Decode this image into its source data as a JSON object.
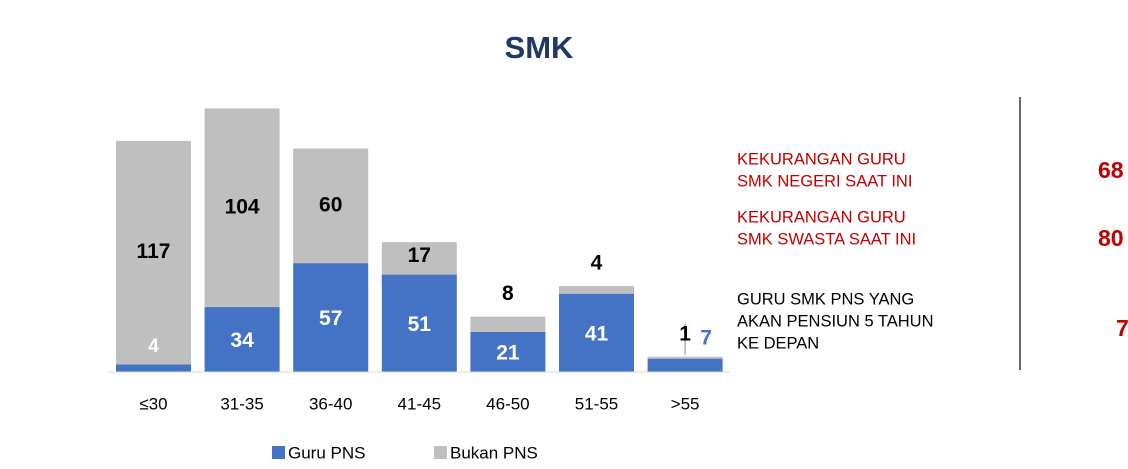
{
  "chart_data": {
    "type": "bar",
    "stacked": true,
    "title": "SMK",
    "categories": [
      "≤30",
      "31-35",
      "36-40",
      "41-45",
      "46-50",
      "51-55",
      ">55"
    ],
    "series": [
      {
        "name": "Guru PNS",
        "color": "#4472c4",
        "values": [
          4,
          34,
          57,
          51,
          21,
          41,
          7
        ]
      },
      {
        "name": "Bukan PNS",
        "color": "#bfbfbf",
        "values": [
          117,
          104,
          60,
          17,
          8,
          4,
          1
        ]
      }
    ]
  },
  "side_panel": [
    {
      "lines": [
        "KEKURANGAN GURU",
        "SMK NEGERI SAAT INI"
      ],
      "number": "68",
      "color": "#c00000"
    },
    {
      "lines": [
        "KEKURANGAN GURU",
        "SMK SWASTA SAAT INI"
      ],
      "number": "80",
      "color": "#c00000"
    },
    {
      "lines": [
        "GURU SMK PNS YANG",
        "AKAN PENSIUN 5 TAHUN",
        "KE DEPAN"
      ],
      "number": "7",
      "color": "#000000"
    }
  ]
}
